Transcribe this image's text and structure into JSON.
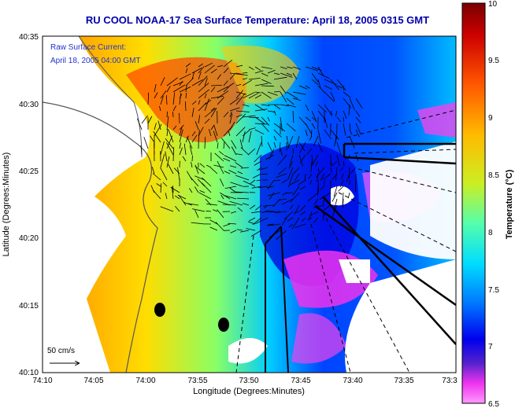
{
  "title": "RU COOL  NOAA-17  Sea Surface Temperature:  April 18, 2005 0315 GMT",
  "overlay": {
    "line1": "Raw Surface Current:",
    "line2": "April 18, 2005 04:00 GMT"
  },
  "scale": {
    "label": "50 cm/s"
  },
  "axes": {
    "xlabel": "Longitude (Degrees:Minutes)",
    "ylabel": "Latitude (Degrees:Minutes)",
    "xticks": [
      "74:10",
      "74:05",
      "74:00",
      "73:55",
      "73:50",
      "73:45",
      "73:40",
      "73:35",
      "73:3"
    ],
    "yticks": [
      "40:35",
      "40:30",
      "40:25",
      "40:20",
      "40:15",
      "40:10"
    ]
  },
  "colorbar": {
    "label": "Temperature (°C)",
    "ticks": [
      "10",
      "9.5",
      "9",
      "8.5",
      "8",
      "7.5",
      "7",
      "6.5"
    ],
    "min": 6.5,
    "max": 10
  },
  "colors": {
    "title": "#0000aa",
    "overlay": "#2233cc",
    "land": "#ffffff"
  }
}
